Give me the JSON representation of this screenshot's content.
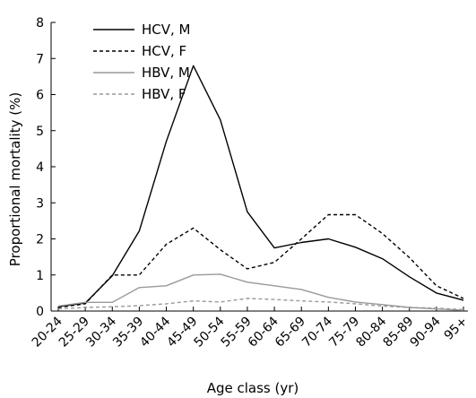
{
  "chart_data": {
    "type": "line",
    "xlabel": "Age class (yr)",
    "ylabel": "Proportional mortality (%)",
    "ylim": [
      0,
      8
    ],
    "yticks": [
      "0",
      "1",
      "2",
      "3",
      "4",
      "5",
      "6",
      "7",
      "8"
    ],
    "categories": [
      "20-24",
      "25-29",
      "30-34",
      "35-39",
      "40-44",
      "45-49",
      "50-54",
      "55-59",
      "60-64",
      "65-69",
      "70-74",
      "75-79",
      "80-84",
      "85-89",
      "90-94",
      "95+"
    ],
    "legend_position": "top-left",
    "grid": false,
    "series": [
      {
        "name": "HCV, M",
        "color": "#000000",
        "dash": "solid",
        "values": [
          0.12,
          0.22,
          0.98,
          2.22,
          4.7,
          6.8,
          5.3,
          2.75,
          1.75,
          1.9,
          2.0,
          1.77,
          1.45,
          0.95,
          0.5,
          0.3
        ]
      },
      {
        "name": "HCV, F",
        "color": "#000000",
        "dash": "dashed",
        "values": [
          0.1,
          0.2,
          1.0,
          1.0,
          1.85,
          2.3,
          1.7,
          1.17,
          1.35,
          2.0,
          2.67,
          2.67,
          2.15,
          1.48,
          0.7,
          0.35
        ]
      },
      {
        "name": "HBV, M",
        "color": "#999999",
        "dash": "solid",
        "values": [
          0.14,
          0.24,
          0.24,
          0.65,
          0.7,
          1.0,
          1.02,
          0.8,
          0.7,
          0.6,
          0.38,
          0.25,
          0.18,
          0.1,
          0.06,
          0.02
        ]
      },
      {
        "name": "HBV, F",
        "color": "#999999",
        "dash": "dashed",
        "values": [
          0.06,
          0.1,
          0.12,
          0.15,
          0.2,
          0.28,
          0.25,
          0.35,
          0.32,
          0.28,
          0.25,
          0.2,
          0.14,
          0.1,
          0.08,
          0.04
        ]
      }
    ]
  }
}
